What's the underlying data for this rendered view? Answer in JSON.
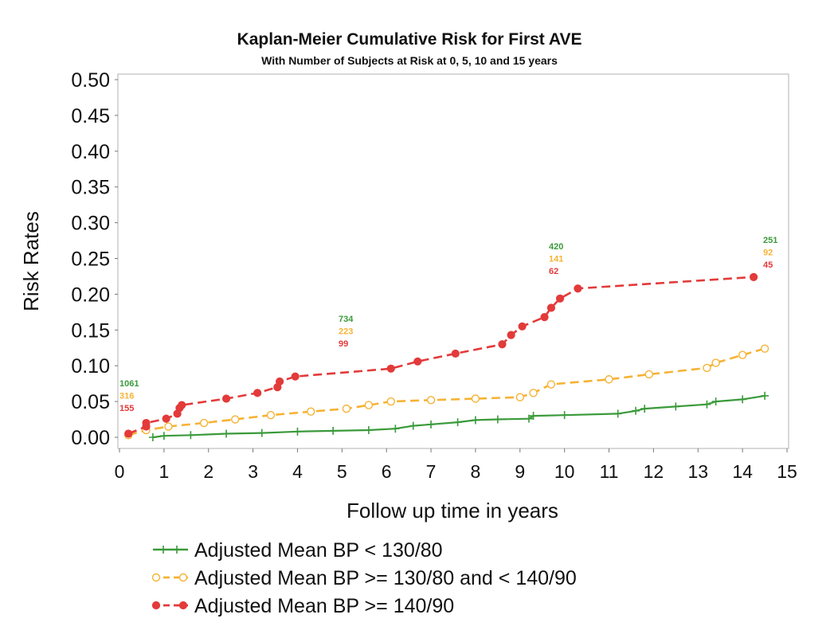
{
  "chart_data": {
    "type": "line",
    "title": "Kaplan-Meier Cumulative Risk for First AVE",
    "subtitle": "With Number of Subjects at Risk at 0, 5, 10 and 15 years",
    "xlabel": "Follow up time in years",
    "ylabel": "Risk Rates",
    "xlim": [
      0,
      15
    ],
    "ylim": [
      0,
      0.5
    ],
    "x_ticks": [
      "0",
      "1",
      "2",
      "3",
      "4",
      "5",
      "6",
      "7",
      "8",
      "9",
      "10",
      "11",
      "12",
      "13",
      "14",
      "15"
    ],
    "y_ticks": [
      "0.00",
      "0.05",
      "0.10",
      "0.15",
      "0.20",
      "0.25",
      "0.30",
      "0.35",
      "0.40",
      "0.45",
      "0.50"
    ],
    "grid": false,
    "legend_position": "bottom",
    "series": [
      {
        "name": "Adjusted Mean BP < 130/80",
        "color": "#3a9a3a",
        "line_style": "solid",
        "marker": "plus",
        "x": [
          0.75,
          1.0,
          1.6,
          2.4,
          3.2,
          4.0,
          4.8,
          5.6,
          6.2,
          6.6,
          7.0,
          7.6,
          8.0,
          8.5,
          9.2,
          9.3,
          10.0,
          11.2,
          11.6,
          11.8,
          12.5,
          13.2,
          13.4,
          14.0,
          14.5
        ],
        "y": [
          0.0,
          0.002,
          0.003,
          0.005,
          0.006,
          0.008,
          0.009,
          0.01,
          0.012,
          0.016,
          0.018,
          0.021,
          0.024,
          0.025,
          0.026,
          0.03,
          0.031,
          0.033,
          0.037,
          0.04,
          0.043,
          0.046,
          0.05,
          0.053,
          0.058
        ]
      },
      {
        "name": "Adjusted Mean BP >= 130/80 and < 140/90",
        "color": "#f5b335",
        "line_style": "dashed",
        "marker": "circle-open",
        "x": [
          0.2,
          0.6,
          1.1,
          1.9,
          2.6,
          3.4,
          4.3,
          5.1,
          5.6,
          6.1,
          7.0,
          8.0,
          9.0,
          9.3,
          9.7,
          11.0,
          11.9,
          13.2,
          13.4,
          14.0,
          14.5
        ],
        "y": [
          0.003,
          0.01,
          0.015,
          0.02,
          0.025,
          0.031,
          0.036,
          0.04,
          0.045,
          0.05,
          0.052,
          0.054,
          0.056,
          0.062,
          0.074,
          0.081,
          0.088,
          0.097,
          0.104,
          0.115,
          0.124
        ]
      },
      {
        "name": "Adjusted Mean BP >= 140/90",
        "color": "#e33a3a",
        "line_style": "dashed",
        "marker": "circle-filled",
        "x": [
          0.2,
          0.6,
          0.6,
          1.05,
          1.3,
          1.35,
          1.4,
          2.4,
          3.1,
          3.55,
          3.6,
          3.95,
          6.1,
          6.7,
          7.55,
          8.6,
          8.8,
          9.05,
          9.55,
          9.7,
          9.9,
          10.3,
          14.25
        ],
        "y": [
          0.005,
          0.015,
          0.02,
          0.026,
          0.033,
          0.041,
          0.045,
          0.054,
          0.062,
          0.07,
          0.078,
          0.085,
          0.096,
          0.106,
          0.117,
          0.13,
          0.143,
          0.155,
          0.168,
          0.181,
          0.194,
          0.208,
          0.224
        ]
      }
    ],
    "number_at_risk": [
      {
        "x": 0,
        "counts": [
          "1061",
          "316",
          "155"
        ]
      },
      {
        "x": 5,
        "counts": [
          "734",
          "223",
          "99"
        ]
      },
      {
        "x": 10,
        "counts": [
          "420",
          "141",
          "62"
        ]
      },
      {
        "x": 15,
        "counts": [
          "251",
          "92",
          "45"
        ]
      }
    ]
  }
}
